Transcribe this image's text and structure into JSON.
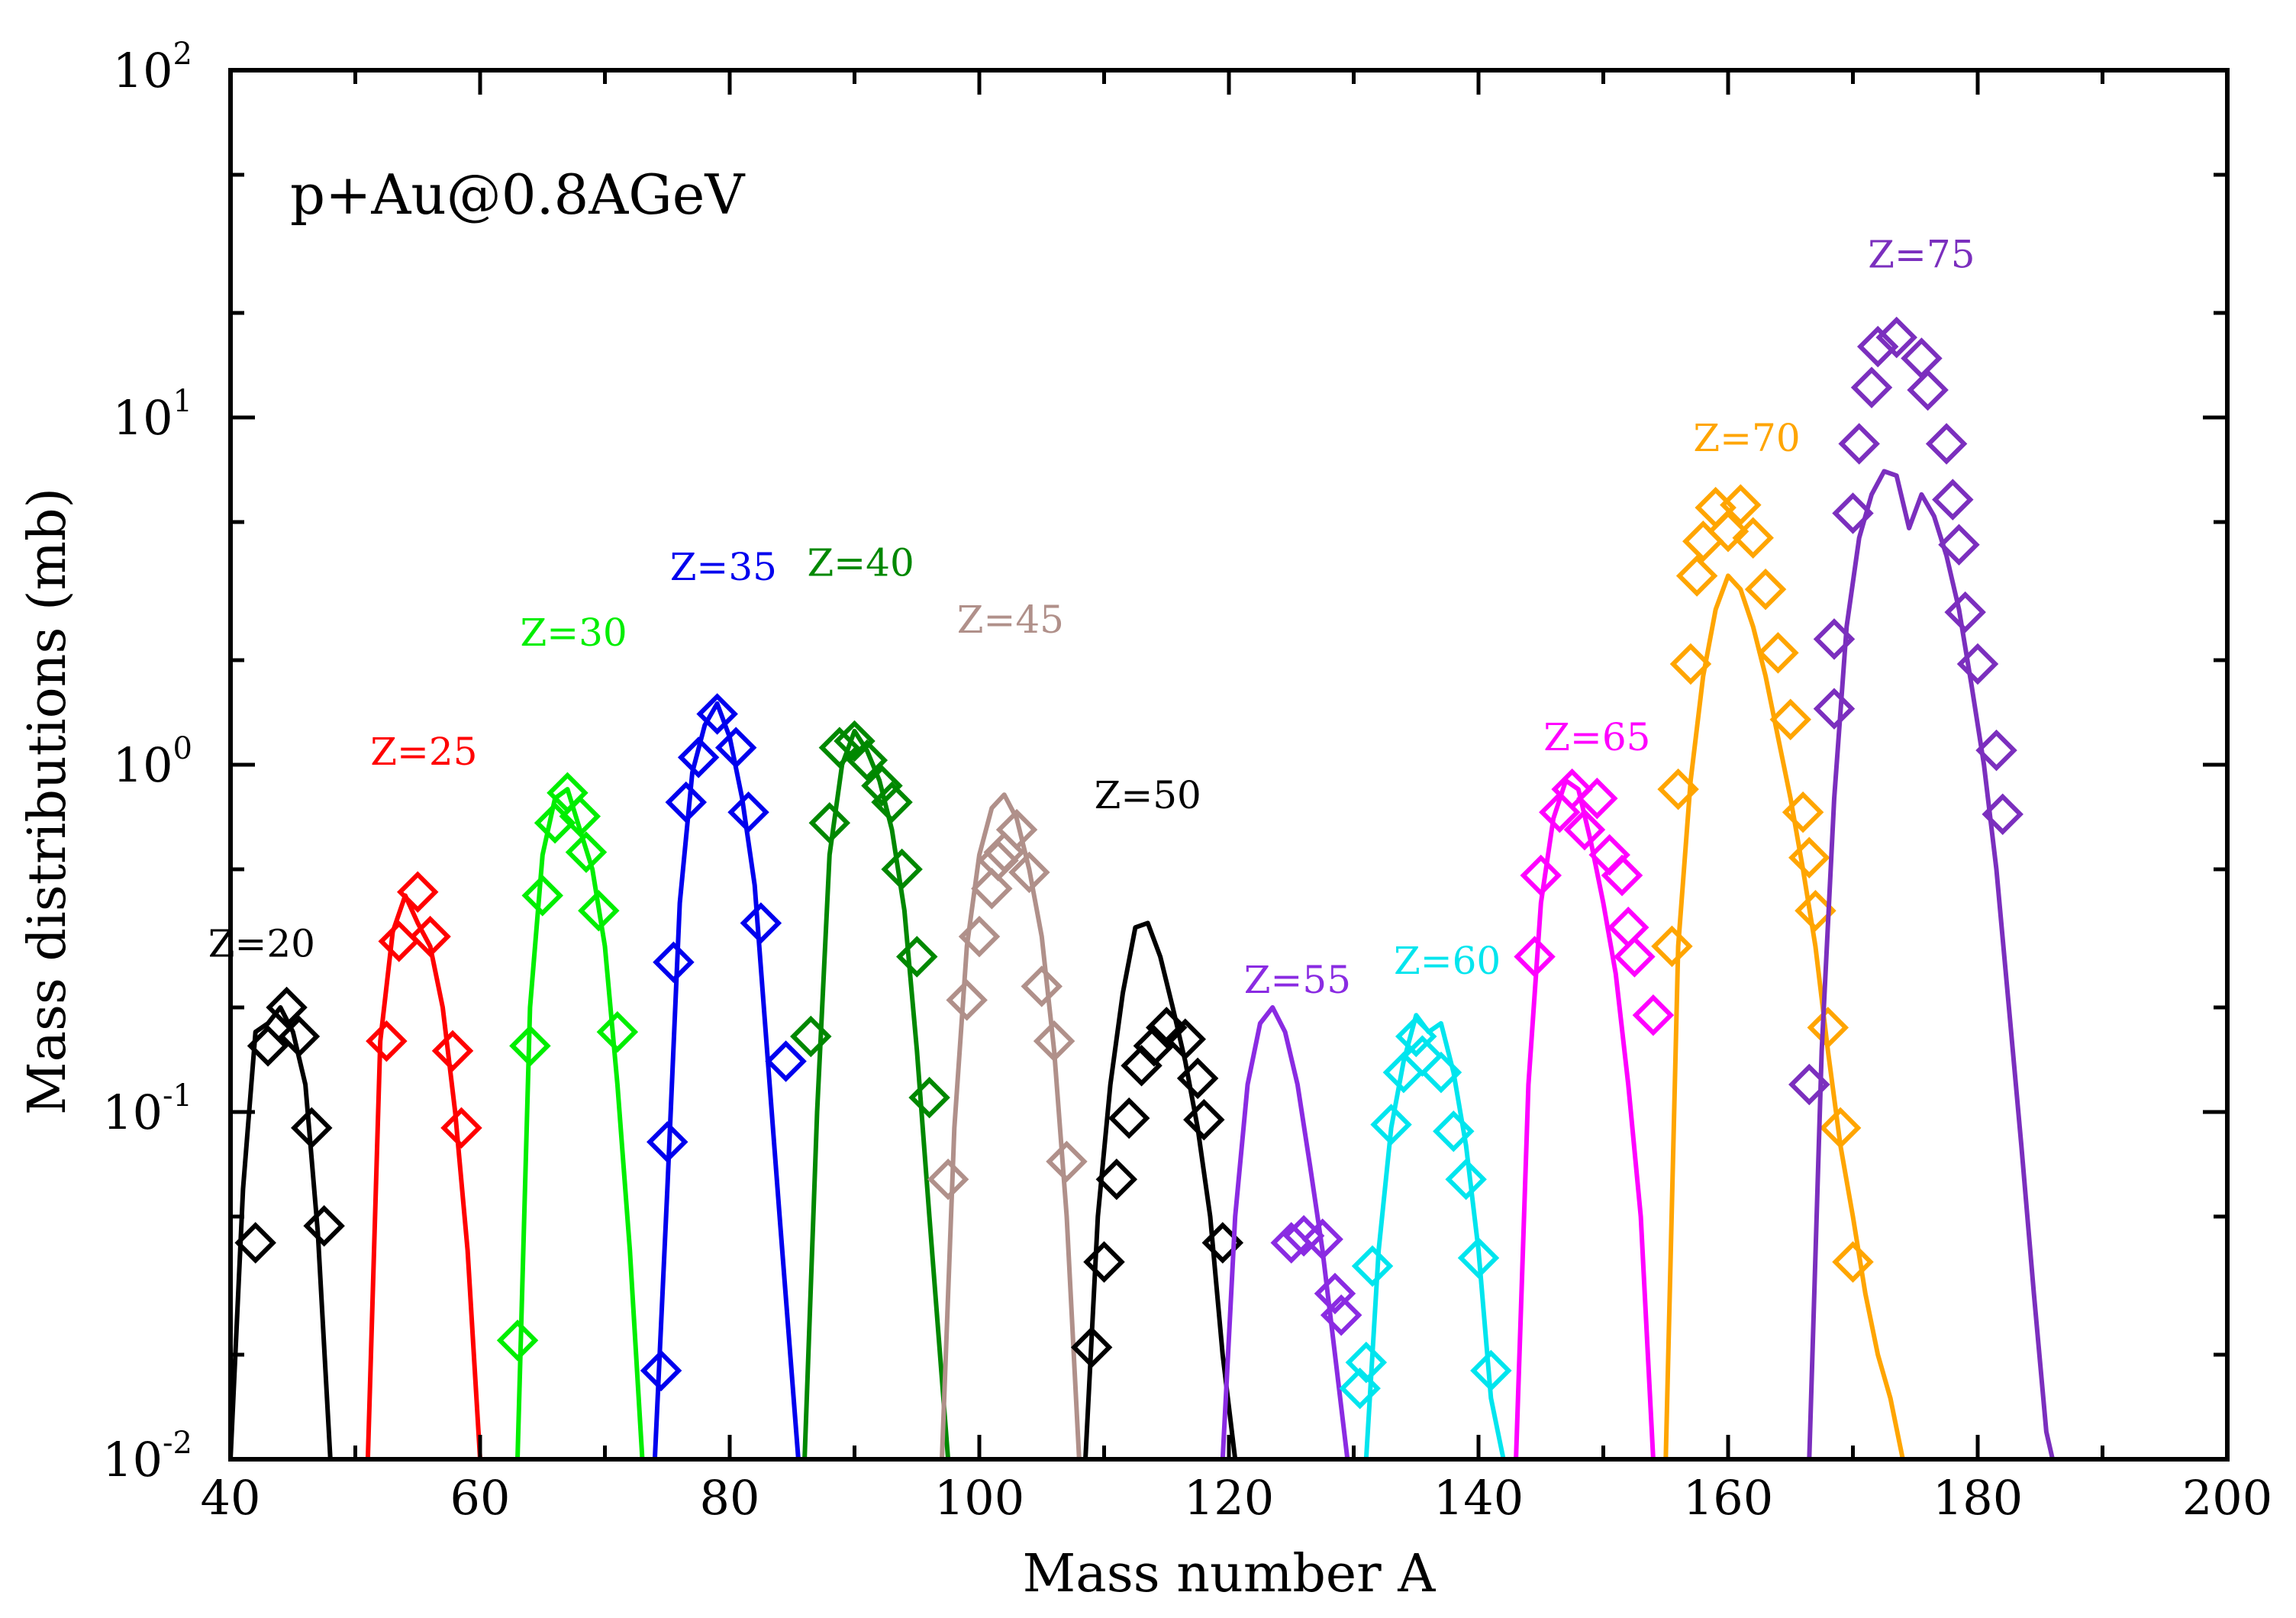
{
  "chart_data": {
    "type": "line+scatter",
    "yscale": "log",
    "xlabel": "Mass number A",
    "ylabel": "Mass distributions (mb)",
    "annotation": "p+Au@0.8AGeV",
    "xlim": [
      40,
      200
    ],
    "ylim": [
      0.01,
      100
    ],
    "xticks": [
      40,
      60,
      80,
      100,
      120,
      140,
      160,
      180,
      200
    ],
    "xtick_labels": [
      "40",
      "60",
      "80",
      "100",
      "120",
      "140",
      "160",
      "180",
      "200"
    ],
    "yticks": [
      {
        "value": 0.01,
        "base": "10",
        "exp": "-2"
      },
      {
        "value": 0.1,
        "base": "10",
        "exp": "-1"
      },
      {
        "value": 1,
        "base": "10",
        "exp": "0"
      },
      {
        "value": 10,
        "base": "10",
        "exp": "1"
      },
      {
        "value": 100,
        "base": "10",
        "exp": "2"
      }
    ],
    "series": [
      {
        "name": "Z=20",
        "color": "#000000",
        "line": [
          [
            40,
            0.01
          ],
          [
            41,
            0.06
          ],
          [
            42,
            0.17
          ],
          [
            43,
            0.18
          ],
          [
            44,
            0.2
          ],
          [
            45,
            0.17
          ],
          [
            46,
            0.12
          ],
          [
            47,
            0.045
          ],
          [
            48,
            0.01
          ]
        ],
        "points": [
          [
            42,
            0.042
          ],
          [
            43,
            0.155
          ],
          [
            44.5,
            0.2
          ],
          [
            45.5,
            0.165
          ],
          [
            46.5,
            0.09
          ],
          [
            47.5,
            0.047
          ]
        ]
      },
      {
        "name": "Z=25",
        "color": "#ff0000",
        "line": [
          [
            51,
            0.01
          ],
          [
            52,
            0.16
          ],
          [
            53,
            0.33
          ],
          [
            54,
            0.42
          ],
          [
            55,
            0.35
          ],
          [
            56,
            0.3
          ],
          [
            57,
            0.2
          ],
          [
            58,
            0.1
          ],
          [
            59,
            0.04
          ],
          [
            60,
            0.01
          ]
        ],
        "points": [
          [
            52.5,
            0.16
          ],
          [
            53.5,
            0.31
          ],
          [
            55,
            0.43
          ],
          [
            56,
            0.32
          ],
          [
            57.8,
            0.15
          ],
          [
            58.5,
            0.09
          ]
        ]
      },
      {
        "name": "Z=30",
        "color": "#00ee00",
        "line": [
          [
            63,
            0.01
          ],
          [
            64,
            0.2
          ],
          [
            65,
            0.55
          ],
          [
            66,
            0.8
          ],
          [
            67,
            0.85
          ],
          [
            68,
            0.65
          ],
          [
            69,
            0.5
          ],
          [
            70,
            0.3
          ],
          [
            71,
            0.12
          ],
          [
            72,
            0.04
          ],
          [
            73,
            0.01
          ]
        ],
        "points": [
          [
            63,
            0.022
          ],
          [
            64,
            0.155
          ],
          [
            65,
            0.42
          ],
          [
            66,
            0.68
          ],
          [
            67,
            0.83
          ],
          [
            68,
            0.71
          ],
          [
            68.5,
            0.56
          ],
          [
            69.5,
            0.38
          ],
          [
            71,
            0.17
          ]
        ]
      },
      {
        "name": "Z=35",
        "color": "#0000ee",
        "line": [
          [
            74,
            0.01
          ],
          [
            75,
            0.06
          ],
          [
            76,
            0.4
          ],
          [
            77,
            0.95
          ],
          [
            78,
            1.3
          ],
          [
            79,
            1.5
          ],
          [
            80,
            1.2
          ],
          [
            81,
            0.8
          ],
          [
            82,
            0.45
          ],
          [
            83,
            0.15
          ],
          [
            84,
            0.05
          ],
          [
            85.5,
            0.01
          ]
        ],
        "points": [
          [
            74.5,
            0.018
          ],
          [
            75,
            0.082
          ],
          [
            75.5,
            0.27
          ],
          [
            76.5,
            0.78
          ],
          [
            77.5,
            1.05
          ],
          [
            79,
            1.4
          ],
          [
            80.5,
            1.12
          ],
          [
            81.5,
            0.73
          ],
          [
            82.5,
            0.35
          ],
          [
            84.5,
            0.14
          ]
        ]
      },
      {
        "name": "Z=40",
        "color": "#008800",
        "line": [
          [
            86,
            0.01
          ],
          [
            87,
            0.1
          ],
          [
            88,
            0.55
          ],
          [
            89,
            1.0
          ],
          [
            90,
            1.25
          ],
          [
            91,
            1.1
          ],
          [
            92,
            0.9
          ],
          [
            93,
            0.65
          ],
          [
            94,
            0.38
          ],
          [
            95,
            0.15
          ],
          [
            96,
            0.05
          ],
          [
            97.5,
            0.01
          ]
        ],
        "points": [
          [
            86.5,
            0.165
          ],
          [
            88,
            0.68
          ],
          [
            88.8,
            1.12
          ],
          [
            90,
            1.17
          ],
          [
            91,
            1.03
          ],
          [
            92.2,
            0.87
          ],
          [
            93,
            0.78
          ],
          [
            93.8,
            0.5
          ],
          [
            95,
            0.28
          ],
          [
            96,
            0.11
          ]
        ]
      },
      {
        "name": "Z=45",
        "color": "#b0908a",
        "line": [
          [
            97,
            0.01
          ],
          [
            98,
            0.09
          ],
          [
            99,
            0.3
          ],
          [
            100,
            0.55
          ],
          [
            101,
            0.75
          ],
          [
            102,
            0.82
          ],
          [
            103,
            0.7
          ],
          [
            104,
            0.5
          ],
          [
            105,
            0.32
          ],
          [
            106,
            0.15
          ],
          [
            107,
            0.05
          ],
          [
            108,
            0.01
          ]
        ],
        "points": [
          [
            97.5,
            0.064
          ],
          [
            99,
            0.21
          ],
          [
            100,
            0.32
          ],
          [
            101,
            0.44
          ],
          [
            101.5,
            0.53
          ],
          [
            102,
            0.56
          ],
          [
            103,
            0.65
          ],
          [
            104,
            0.49
          ],
          [
            105,
            0.23
          ],
          [
            106,
            0.16
          ],
          [
            107,
            0.072
          ]
        ]
      },
      {
        "name": "Z=50",
        "color": "#000000",
        "line": [
          [
            108.5,
            0.01
          ],
          [
            109.5,
            0.05
          ],
          [
            110.5,
            0.12
          ],
          [
            111.5,
            0.22
          ],
          [
            112.5,
            0.34
          ],
          [
            113.5,
            0.35
          ],
          [
            114.5,
            0.28
          ],
          [
            115.5,
            0.2
          ],
          [
            116.5,
            0.14
          ],
          [
            117.5,
            0.09
          ],
          [
            118.5,
            0.05
          ],
          [
            119.5,
            0.02
          ],
          [
            120.5,
            0.01
          ]
        ],
        "points": [
          [
            109,
            0.021
          ],
          [
            110,
            0.037
          ],
          [
            111,
            0.064
          ],
          [
            112,
            0.096
          ],
          [
            113,
            0.136
          ],
          [
            114,
            0.155
          ],
          [
            115,
            0.175
          ],
          [
            116.5,
            0.162
          ],
          [
            117.5,
            0.125
          ],
          [
            118,
            0.095
          ],
          [
            119.5,
            0.042
          ]
        ]
      },
      {
        "name": "Z=55",
        "color": "#8a2be2",
        "line": [
          [
            119.5,
            0.01
          ],
          [
            120.5,
            0.05
          ],
          [
            121.5,
            0.12
          ],
          [
            122.5,
            0.18
          ],
          [
            123.5,
            0.2
          ],
          [
            124.5,
            0.17
          ],
          [
            125.5,
            0.12
          ],
          [
            126.5,
            0.07
          ],
          [
            127.5,
            0.04
          ],
          [
            128.5,
            0.02
          ],
          [
            129.5,
            0.01
          ]
        ],
        "points": [
          [
            125,
            0.042
          ],
          [
            126,
            0.044
          ],
          [
            127.5,
            0.043
          ],
          [
            128.5,
            0.03
          ],
          [
            129,
            0.026
          ]
        ]
      },
      {
        "name": "Z=60",
        "color": "#00e5ee",
        "line": [
          [
            131,
            0.01
          ],
          [
            132,
            0.04
          ],
          [
            133,
            0.09
          ],
          [
            134,
            0.14
          ],
          [
            135,
            0.19
          ],
          [
            136,
            0.17
          ],
          [
            137,
            0.18
          ],
          [
            138,
            0.13
          ],
          [
            139,
            0.08
          ],
          [
            140,
            0.04
          ],
          [
            141,
            0.015
          ],
          [
            142,
            0.01
          ]
        ],
        "points": [
          [
            130.5,
            0.016
          ],
          [
            131,
            0.019
          ],
          [
            131.5,
            0.036
          ],
          [
            133,
            0.092
          ],
          [
            134,
            0.13
          ],
          [
            135,
            0.165
          ],
          [
            135.5,
            0.145
          ],
          [
            137,
            0.13
          ],
          [
            138,
            0.088
          ],
          [
            139,
            0.064
          ],
          [
            140,
            0.038
          ],
          [
            141,
            0.018
          ]
        ]
      },
      {
        "name": "Z=65",
        "color": "#ff00ff",
        "line": [
          [
            143,
            0.01
          ],
          [
            144,
            0.12
          ],
          [
            145,
            0.4
          ],
          [
            146,
            0.7
          ],
          [
            147,
            0.9
          ],
          [
            148,
            0.85
          ],
          [
            149,
            0.6
          ],
          [
            150,
            0.4
          ],
          [
            151,
            0.25
          ],
          [
            152,
            0.12
          ],
          [
            153,
            0.05
          ],
          [
            154,
            0.01
          ]
        ],
        "points": [
          [
            144.5,
            0.28
          ],
          [
            145,
            0.48
          ],
          [
            146.5,
            0.73
          ],
          [
            147.5,
            0.85
          ],
          [
            148.5,
            0.65
          ],
          [
            149.5,
            0.8
          ],
          [
            150.5,
            0.55
          ],
          [
            151.5,
            0.48
          ],
          [
            152,
            0.34
          ],
          [
            152.5,
            0.28
          ],
          [
            154,
            0.19
          ]
        ]
      },
      {
        "name": "Z=70",
        "color": "#ffa500",
        "line": [
          [
            155,
            0.01
          ],
          [
            156,
            0.3
          ],
          [
            157,
            0.9
          ],
          [
            158,
            1.8
          ],
          [
            159,
            2.8
          ],
          [
            160,
            3.5
          ],
          [
            161,
            3.2
          ],
          [
            162,
            2.5
          ],
          [
            163,
            1.8
          ],
          [
            164,
            1.2
          ],
          [
            165,
            0.8
          ],
          [
            166,
            0.5
          ],
          [
            167,
            0.3
          ],
          [
            168,
            0.15
          ],
          [
            169,
            0.08
          ],
          [
            170,
            0.05
          ],
          [
            171,
            0.03
          ],
          [
            172,
            0.02
          ],
          [
            173,
            0.015
          ],
          [
            174,
            0.01
          ]
        ],
        "points": [
          [
            155.5,
            0.3
          ],
          [
            156,
            0.85
          ],
          [
            157,
            1.95
          ],
          [
            157.5,
            3.5
          ],
          [
            158,
            4.4
          ],
          [
            159,
            5.5
          ],
          [
            160,
            4.7
          ],
          [
            161,
            5.6
          ],
          [
            162,
            4.5
          ],
          [
            163,
            3.2
          ],
          [
            164,
            2.1
          ],
          [
            165,
            1.35
          ],
          [
            166,
            0.73
          ],
          [
            166.5,
            0.54
          ],
          [
            167,
            0.38
          ],
          [
            168,
            0.175
          ],
          [
            169,
            0.09
          ],
          [
            170,
            0.037
          ]
        ]
      },
      {
        "name": "Z=75",
        "color": "#7b2fbe",
        "line": [
          [
            166.5,
            0.01
          ],
          [
            167.5,
            0.15
          ],
          [
            168.5,
            0.8
          ],
          [
            169.5,
            2.5
          ],
          [
            170.5,
            4.5
          ],
          [
            171.5,
            6.0
          ],
          [
            172.5,
            7.0
          ],
          [
            173.5,
            6.8
          ],
          [
            174.5,
            4.8
          ],
          [
            175.5,
            6.0
          ],
          [
            176.5,
            5.2
          ],
          [
            177.5,
            4.0
          ],
          [
            178.5,
            2.8
          ],
          [
            179.5,
            1.7
          ],
          [
            180.5,
            1.0
          ],
          [
            181.5,
            0.5
          ],
          [
            182.5,
            0.2
          ],
          [
            183.5,
            0.08
          ],
          [
            184.5,
            0.03
          ],
          [
            185.5,
            0.012
          ],
          [
            186,
            0.01
          ]
        ],
        "points": [
          [
            166.5,
            0.12
          ],
          [
            168.5,
            1.45
          ],
          [
            168.5,
            2.3
          ],
          [
            170,
            5.3
          ],
          [
            170.5,
            8.4
          ],
          [
            171.5,
            12.2
          ],
          [
            172,
            16.0
          ],
          [
            173.5,
            17.0
          ],
          [
            175.5,
            14.8
          ],
          [
            176,
            12.0
          ],
          [
            177.5,
            8.4
          ],
          [
            178,
            5.8
          ],
          [
            178.5,
            4.3
          ],
          [
            179,
            2.75
          ],
          [
            180,
            1.95
          ],
          [
            181.5,
            1.1
          ],
          [
            182,
            0.72
          ]
        ]
      }
    ],
    "series_label_positions": {
      "Z=20": [
        42.5,
        0.28
      ],
      "Z=25": [
        55.5,
        1.0
      ],
      "Z=30": [
        67.5,
        2.2
      ],
      "Z=35": [
        79.5,
        3.4
      ],
      "Z=40": [
        90.5,
        3.5
      ],
      "Z=45": [
        102.5,
        2.4
      ],
      "Z=50": [
        113.5,
        0.75
      ],
      "Z=55": [
        125.5,
        0.22
      ],
      "Z=60": [
        137.5,
        0.25
      ],
      "Z=65": [
        149.5,
        1.1
      ],
      "Z=70": [
        161.5,
        8.0
      ],
      "Z=75": [
        175.5,
        27
      ]
    }
  }
}
